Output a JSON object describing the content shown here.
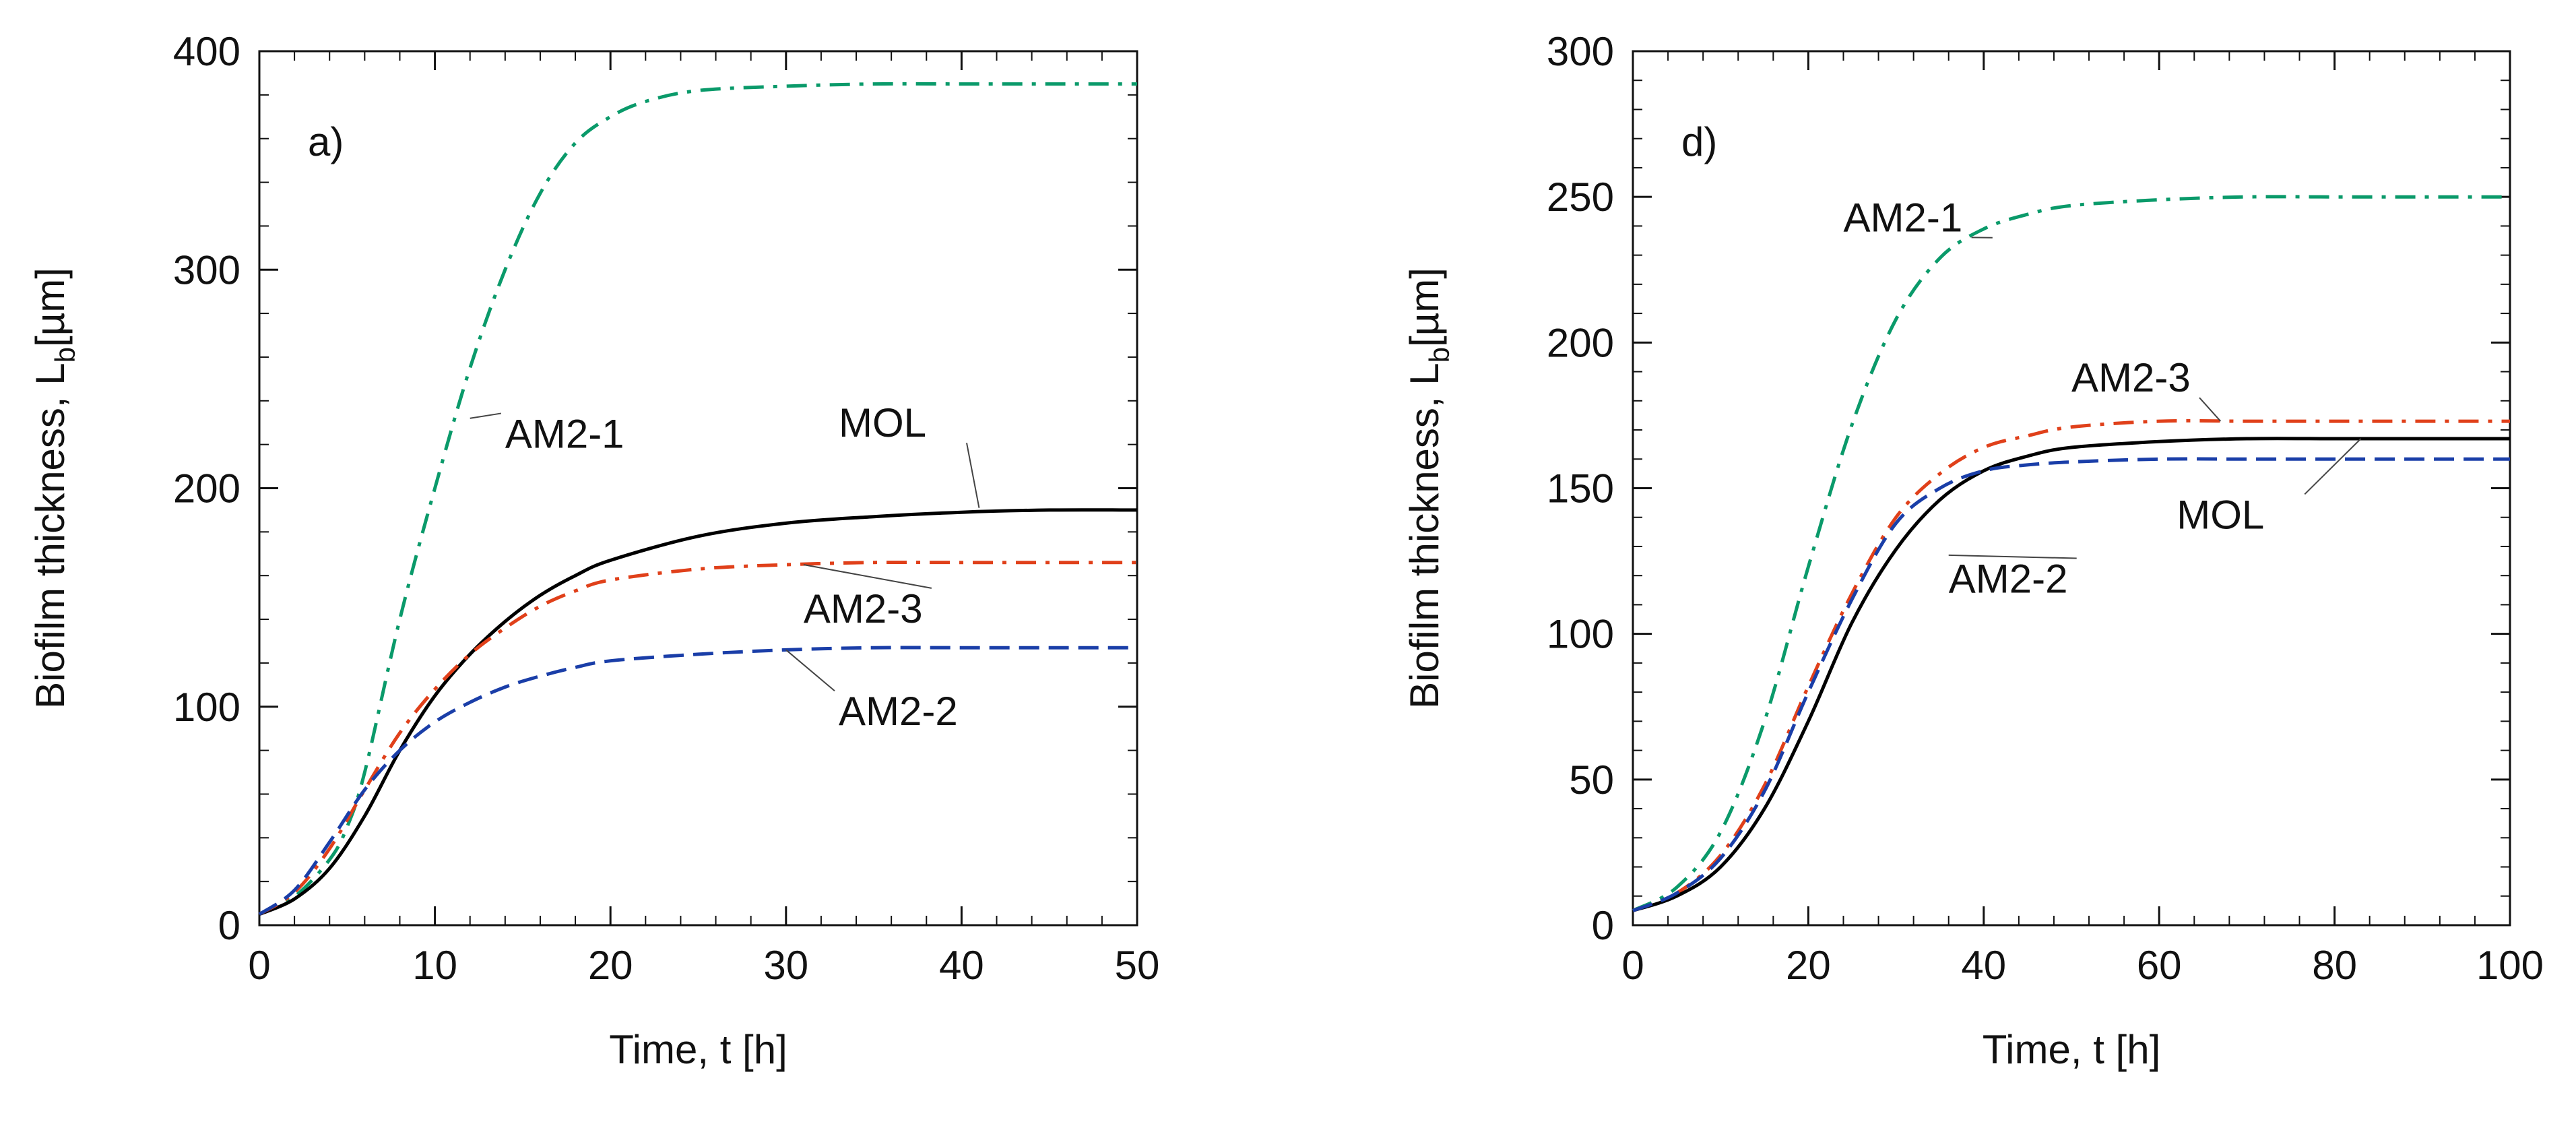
{
  "chart_data": [
    {
      "type": "line",
      "panel_label": "a)",
      "xlabel": "Time, t [h]",
      "ylabel_main": "Biofilm thickness, L",
      "ylabel_sub": "b",
      "ylabel_unit": "[µm]",
      "xlim": [
        0,
        50
      ],
      "ylim": [
        0,
        400
      ],
      "xticks": [
        0,
        10,
        20,
        30,
        40,
        50
      ],
      "yticks": [
        0,
        100,
        200,
        300,
        400
      ],
      "xtick_labels": [
        "0",
        "10",
        "20",
        "30",
        "40",
        "50"
      ],
      "ytick_labels": [
        "0",
        "100",
        "200",
        "300",
        "400"
      ],
      "grid": false,
      "series": [
        {
          "name": "AM2-1",
          "color": "#0a9a6a",
          "dash": "dashdot",
          "x": [
            0,
            2,
            4,
            5,
            6,
            8,
            10,
            12,
            14,
            16,
            18,
            20,
            22,
            25,
            30,
            35,
            40,
            45,
            50
          ],
          "y": [
            5,
            13,
            30,
            45,
            70,
            140,
            200,
            255,
            300,
            335,
            358,
            370,
            377,
            382,
            384,
            385,
            385,
            385,
            385
          ]
        },
        {
          "name": "MOL",
          "color": "#000000",
          "dash": "solid",
          "x": [
            0,
            2,
            4,
            6,
            8,
            10,
            12,
            14,
            16,
            18,
            20,
            25,
            30,
            35,
            40,
            45,
            50
          ],
          "y": [
            5,
            12,
            26,
            50,
            80,
            105,
            124,
            139,
            151,
            160,
            167,
            178,
            184,
            187,
            189,
            190,
            190
          ]
        },
        {
          "name": "AM2-3",
          "color": "#e0401a",
          "dash": "dashdot",
          "x": [
            0,
            2,
            4,
            6,
            8,
            10,
            12,
            14,
            16,
            18,
            20,
            25,
            30,
            35,
            40,
            45,
            50
          ],
          "y": [
            5,
            15,
            35,
            62,
            88,
            108,
            124,
            136,
            146,
            153,
            158,
            163,
            165,
            166,
            166,
            166,
            166
          ]
        },
        {
          "name": "AM2-2",
          "color": "#1a3ea8",
          "dash": "dashed",
          "x": [
            0,
            2,
            4,
            6,
            8,
            10,
            12,
            14,
            16,
            18,
            20,
            25,
            30,
            35,
            40,
            45,
            50
          ],
          "y": [
            5,
            16,
            38,
            62,
            80,
            93,
            102,
            109,
            114,
            118,
            121,
            124,
            126,
            127,
            127,
            127,
            127
          ]
        }
      ],
      "annotations": [
        {
          "text": "AM2-1",
          "series": "AM2-1",
          "at_x": 12,
          "at_y": 232,
          "text_x": 14,
          "text_y": 225
        },
        {
          "text": "MOL",
          "series": "MOL",
          "at_x": 41,
          "at_y": 191,
          "text_x": 33,
          "text_y": 230
        },
        {
          "text": "AM2-3",
          "series": "AM2-3",
          "at_x": 31,
          "at_y": 165,
          "text_x": 31,
          "text_y": 145
        },
        {
          "text": "AM2-2",
          "series": "AM2-2",
          "at_x": 30,
          "at_y": 126,
          "text_x": 33,
          "text_y": 98
        }
      ]
    },
    {
      "type": "line",
      "panel_label": "d)",
      "xlabel": "Time, t [h]",
      "ylabel_main": "Biofilm thickness, L",
      "ylabel_sub": "b",
      "ylabel_unit": "[µm]",
      "xlim": [
        0,
        100
      ],
      "ylim": [
        0,
        300
      ],
      "xticks": [
        0,
        20,
        40,
        60,
        80,
        100
      ],
      "yticks": [
        0,
        50,
        100,
        150,
        200,
        250,
        300
      ],
      "xtick_labels": [
        "0",
        "20",
        "40",
        "60",
        "80",
        "100"
      ],
      "ytick_labels": [
        "0",
        "50",
        "100",
        "150",
        "200",
        "250",
        "300"
      ],
      "grid": false,
      "series": [
        {
          "name": "AM2-1",
          "color": "#0a9a6a",
          "dash": "dashdot",
          "x": [
            0,
            5,
            10,
            15,
            20,
            25,
            30,
            35,
            40,
            45,
            50,
            60,
            70,
            80,
            90,
            100
          ],
          "y": [
            5,
            13,
            32,
            70,
            123,
            172,
            208,
            229,
            239,
            244,
            247,
            249,
            250,
            250,
            250,
            250
          ]
        },
        {
          "name": "AM2-3",
          "color": "#e0401a",
          "dash": "dashdot",
          "x": [
            0,
            5,
            10,
            15,
            20,
            25,
            30,
            35,
            40,
            45,
            50,
            60,
            70,
            80,
            90,
            100
          ],
          "y": [
            5,
            11,
            24,
            48,
            82,
            114,
            140,
            155,
            164,
            168,
            171,
            173,
            173,
            173,
            173,
            173
          ]
        },
        {
          "name": "MOL",
          "color": "#000000",
          "dash": "solid",
          "x": [
            0,
            5,
            10,
            15,
            20,
            25,
            30,
            35,
            40,
            45,
            50,
            60,
            70,
            80,
            90,
            100
          ],
          "y": [
            5,
            10,
            20,
            40,
            70,
            104,
            129,
            146,
            156,
            161,
            164,
            166,
            167,
            167,
            167,
            167
          ]
        },
        {
          "name": "AM2-2",
          "color": "#1a3ea8",
          "dash": "dashed",
          "x": [
            0,
            5,
            10,
            15,
            20,
            25,
            30,
            35,
            40,
            45,
            50,
            60,
            70,
            80,
            90,
            100
          ],
          "y": [
            5,
            11,
            23,
            46,
            80,
            112,
            138,
            150,
            156,
            158,
            159,
            160,
            160,
            160,
            160,
            160
          ]
        }
      ],
      "annotations": [
        {
          "text": "AM2-1",
          "series": "AM2-1",
          "at_x": 41,
          "at_y": 236,
          "text_x": 24,
          "text_y": 243
        },
        {
          "text": "AM2-3",
          "series": "AM2-3",
          "at_x": 67,
          "at_y": 173,
          "text_x": 50,
          "text_y": 188
        },
        {
          "text": "MOL",
          "series": "MOL",
          "at_x": 83,
          "at_y": 167,
          "text_x": 62,
          "text_y": 141
        },
        {
          "text": "AM2-2",
          "series": "AM2-2",
          "at_x": 36,
          "at_y": 127,
          "text_x": 36,
          "text_y": 119
        }
      ]
    }
  ]
}
